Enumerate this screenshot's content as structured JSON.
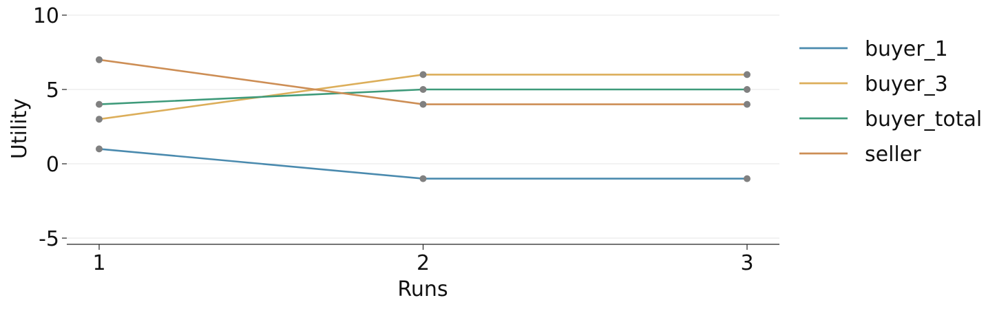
{
  "chart_data": {
    "type": "line",
    "title": "",
    "xlabel": "Runs",
    "ylabel": "Utility",
    "x": [
      1,
      2,
      3
    ],
    "x_ticks": [
      "1",
      "2",
      "3"
    ],
    "y_ticks": [
      -5,
      0,
      5,
      10
    ],
    "y_tick_labels": [
      "-5",
      "0",
      "5",
      "10"
    ],
    "xlim": [
      0.9,
      3.1
    ],
    "ylim": [
      -5.4,
      10.2
    ],
    "grid": "horizontal",
    "legend_position": "right",
    "marker_color": "#808080",
    "series": [
      {
        "name": "buyer_1",
        "values": [
          1,
          -1,
          -1
        ],
        "color": "#4a8aae"
      },
      {
        "name": "buyer_3",
        "values": [
          3,
          6,
          6
        ],
        "color": "#dcae5a"
      },
      {
        "name": "buyer_total",
        "values": [
          4,
          5,
          5
        ],
        "color": "#3e9a7a"
      },
      {
        "name": "seller",
        "values": [
          7,
          4,
          4
        ],
        "color": "#cd8e55"
      }
    ]
  }
}
